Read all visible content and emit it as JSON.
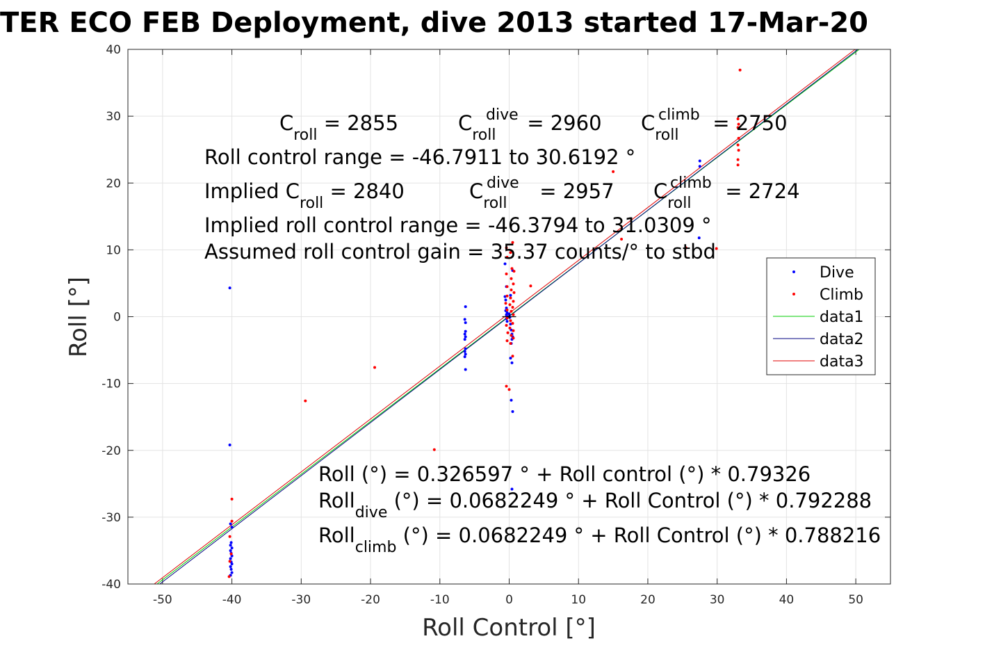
{
  "chart_data": {
    "type": "scatter",
    "title": "TER ECO FEB Deployment, dive 2013 started 17-Mar-20",
    "xlabel": "Roll Control [°]",
    "ylabel": "Roll [°]",
    "xlim": [
      -55,
      55
    ],
    "ylim": [
      -40,
      40
    ],
    "grid": true,
    "x_ticks": [
      -50,
      -40,
      -30,
      -20,
      -10,
      0,
      10,
      20,
      30,
      40,
      50
    ],
    "x_tick_labels": [
      "-50",
      "-40",
      "-30",
      "-20",
      "-10",
      "0",
      "10",
      "20",
      "30",
      "40",
      "50"
    ],
    "y_ticks": [
      -40,
      -30,
      -20,
      -10,
      0,
      10,
      20,
      30,
      40
    ],
    "y_tick_labels": [
      "-40",
      "-30",
      "-20",
      "-10",
      "0",
      "10",
      "20",
      "30",
      "40"
    ],
    "legend_position": "right",
    "colors": {
      "dive": "#0000ff",
      "climb": "#ff0000",
      "data1": "#00cc00",
      "data2": "#000080",
      "data3": "#e00000",
      "origin_cross": "#000000"
    },
    "series": [
      {
        "name": "Dive",
        "kind": "points",
        "points": [
          [
            -40.3,
            4.3
          ],
          [
            -40.3,
            -19.2
          ],
          [
            -40.2,
            -31.0
          ],
          [
            -40.0,
            -31.5
          ],
          [
            -40.1,
            -33.8
          ],
          [
            -40.2,
            -34.2
          ],
          [
            -40.0,
            -34.6
          ],
          [
            -40.2,
            -35.0
          ],
          [
            -40.1,
            -35.4
          ],
          [
            -40.0,
            -35.8
          ],
          [
            -40.2,
            -36.2
          ],
          [
            -40.1,
            -36.7
          ],
          [
            -40.0,
            -37.0
          ],
          [
            -40.2,
            -37.4
          ],
          [
            -40.1,
            -37.8
          ],
          [
            -40.0,
            -38.3
          ],
          [
            -40.2,
            -38.7
          ],
          [
            -6.3,
            1.5
          ],
          [
            -6.4,
            -0.4
          ],
          [
            -6.3,
            -0.9
          ],
          [
            -6.3,
            -2.2
          ],
          [
            -6.4,
            -2.6
          ],
          [
            -6.3,
            -3.0
          ],
          [
            -6.4,
            -3.4
          ],
          [
            -6.3,
            -4.8
          ],
          [
            -6.4,
            -5.2
          ],
          [
            -6.3,
            -5.6
          ],
          [
            -6.4,
            -6.0
          ],
          [
            -6.3,
            -7.9
          ],
          [
            -0.6,
            7.9
          ],
          [
            -0.4,
            4.5
          ],
          [
            -0.6,
            3.0
          ],
          [
            -0.5,
            2.5
          ],
          [
            -0.4,
            1.3
          ],
          [
            -0.5,
            0.9
          ],
          [
            -0.3,
            0.6
          ],
          [
            -0.4,
            0.3
          ],
          [
            -0.2,
            0.0
          ],
          [
            -0.4,
            -0.3
          ],
          [
            -0.3,
            -0.7
          ],
          [
            0.2,
            -1.1
          ],
          [
            0.3,
            -2.0
          ],
          [
            0.4,
            -2.6
          ],
          [
            0.5,
            -3.0
          ],
          [
            0.4,
            -3.4
          ],
          [
            0.3,
            -4.0
          ],
          [
            0.2,
            -6.2
          ],
          [
            0.4,
            -6.9
          ],
          [
            0.3,
            -12.5
          ],
          [
            0.5,
            -14.2
          ],
          [
            0.4,
            -25.8
          ],
          [
            0.5,
            6.9
          ],
          [
            0.2,
            3.2
          ],
          [
            0.0,
            0.4
          ],
          [
            0.1,
            -0.1
          ],
          [
            27.5,
            23.3
          ],
          [
            27.5,
            22.5
          ],
          [
            27.4,
            11.8
          ]
        ]
      },
      {
        "name": "Climb",
        "kind": "points",
        "points": [
          [
            -40.0,
            -27.3
          ],
          [
            -40.0,
            -30.6
          ],
          [
            -40.3,
            -32.9
          ],
          [
            -40.1,
            -35.5
          ],
          [
            -40.3,
            -36.6
          ],
          [
            -40.4,
            -38.9
          ],
          [
            -29.4,
            -12.6
          ],
          [
            -19.4,
            -7.6
          ],
          [
            -10.8,
            -19.9
          ],
          [
            -0.4,
            10.3
          ],
          [
            0.5,
            11.1
          ],
          [
            0.2,
            9.6
          ],
          [
            -0.3,
            8.9
          ],
          [
            0.4,
            7.2
          ],
          [
            0.7,
            6.8
          ],
          [
            -0.4,
            6.4
          ],
          [
            0.3,
            5.7
          ],
          [
            0.6,
            4.9
          ],
          [
            -0.3,
            4.5
          ],
          [
            0.3,
            4.0
          ],
          [
            0.7,
            3.6
          ],
          [
            -0.3,
            3.1
          ],
          [
            0.2,
            2.8
          ],
          [
            0.6,
            2.3
          ],
          [
            -0.5,
            2.0
          ],
          [
            0.1,
            1.8
          ],
          [
            0.5,
            1.4
          ],
          [
            -0.3,
            1.0
          ],
          [
            0.3,
            0.8
          ],
          [
            0.6,
            0.3
          ],
          [
            -0.3,
            -0.2
          ],
          [
            0.2,
            -0.6
          ],
          [
            0.5,
            -1.0
          ],
          [
            -0.4,
            -1.3
          ],
          [
            0.1,
            -1.7
          ],
          [
            0.6,
            -2.1
          ],
          [
            -0.2,
            -2.4
          ],
          [
            0.3,
            -2.8
          ],
          [
            0.6,
            -3.2
          ],
          [
            -0.3,
            -3.6
          ],
          [
            0.2,
            -4.0
          ],
          [
            0.5,
            -5.9
          ],
          [
            -0.4,
            -10.4
          ],
          [
            0.0,
            -10.9
          ],
          [
            3.1,
            4.6
          ],
          [
            15.0,
            21.7
          ],
          [
            16.2,
            11.6
          ],
          [
            33.3,
            36.9
          ],
          [
            33.0,
            29.6
          ],
          [
            33.1,
            28.8
          ],
          [
            33.0,
            28.3
          ],
          [
            33.1,
            26.7
          ],
          [
            33.0,
            25.7
          ],
          [
            33.1,
            24.9
          ],
          [
            33.0,
            23.5
          ],
          [
            33.0,
            22.7
          ],
          [
            29.9,
            10.2
          ],
          [
            25.5,
            10.3
          ]
        ]
      },
      {
        "name": "data1",
        "kind": "line",
        "x": [
          -50.8,
          50.5
        ],
        "y": [
          -40.0,
          40.0
        ]
      },
      {
        "name": "data2",
        "kind": "line",
        "x": [
          -50.4,
          50.3
        ],
        "y": [
          -40.0,
          40.0
        ]
      },
      {
        "name": "data3",
        "kind": "line",
        "x": [
          -51.2,
          49.9
        ],
        "y": [
          -40.0,
          40.0
        ]
      }
    ],
    "origin_cross": {
      "x": [
        -1,
        1
      ],
      "y": [
        -0.1,
        0.1
      ]
    },
    "annotations": {
      "c_roll": "C",
      "c_roll_sub": "roll",
      "c_roll_value": " = 2855",
      "c_roll_dive": "C",
      "c_roll_dive_sup": "dive",
      "c_roll_dive_sub": "roll",
      "c_roll_dive_value": " = 2960",
      "c_roll_climb": "C",
      "c_roll_climb_sup": "climb",
      "c_roll_climb_sub": "roll",
      "c_roll_climb_value": " = 2750",
      "control_range": "Roll control range = -46.7911 to 30.6192 °",
      "implied_prefix": "Implied C",
      "implied_sub": "roll",
      "implied_value": " = 2840",
      "implied_dive": "C",
      "implied_dive_sup": "dive",
      "implied_dive_sub": "roll",
      "implied_dive_value": " = 2957",
      "implied_climb": "C",
      "implied_climb_sup": "climb",
      "implied_climb_sub": "roll",
      "implied_climb_value": " = 2724",
      "implied_range": "Implied roll control range = -46.3794 to 31.0309 °",
      "gain": "Assumed roll control gain = 35.37 counts/° to stbd",
      "fit_all": "Roll (°) = 0.326597 ° + Roll control (°) * 0.79326",
      "fit_dive_prefix": "Roll",
      "fit_dive_sub": "dive",
      "fit_dive_rest": " (°) = 0.0682249 ° + Roll Control (°) * 0.792288",
      "fit_climb_prefix": "Roll",
      "fit_climb_sub": "climb",
      "fit_climb_rest": " (°) = 0.0682249 ° + Roll Control (°) * 0.788216"
    }
  }
}
